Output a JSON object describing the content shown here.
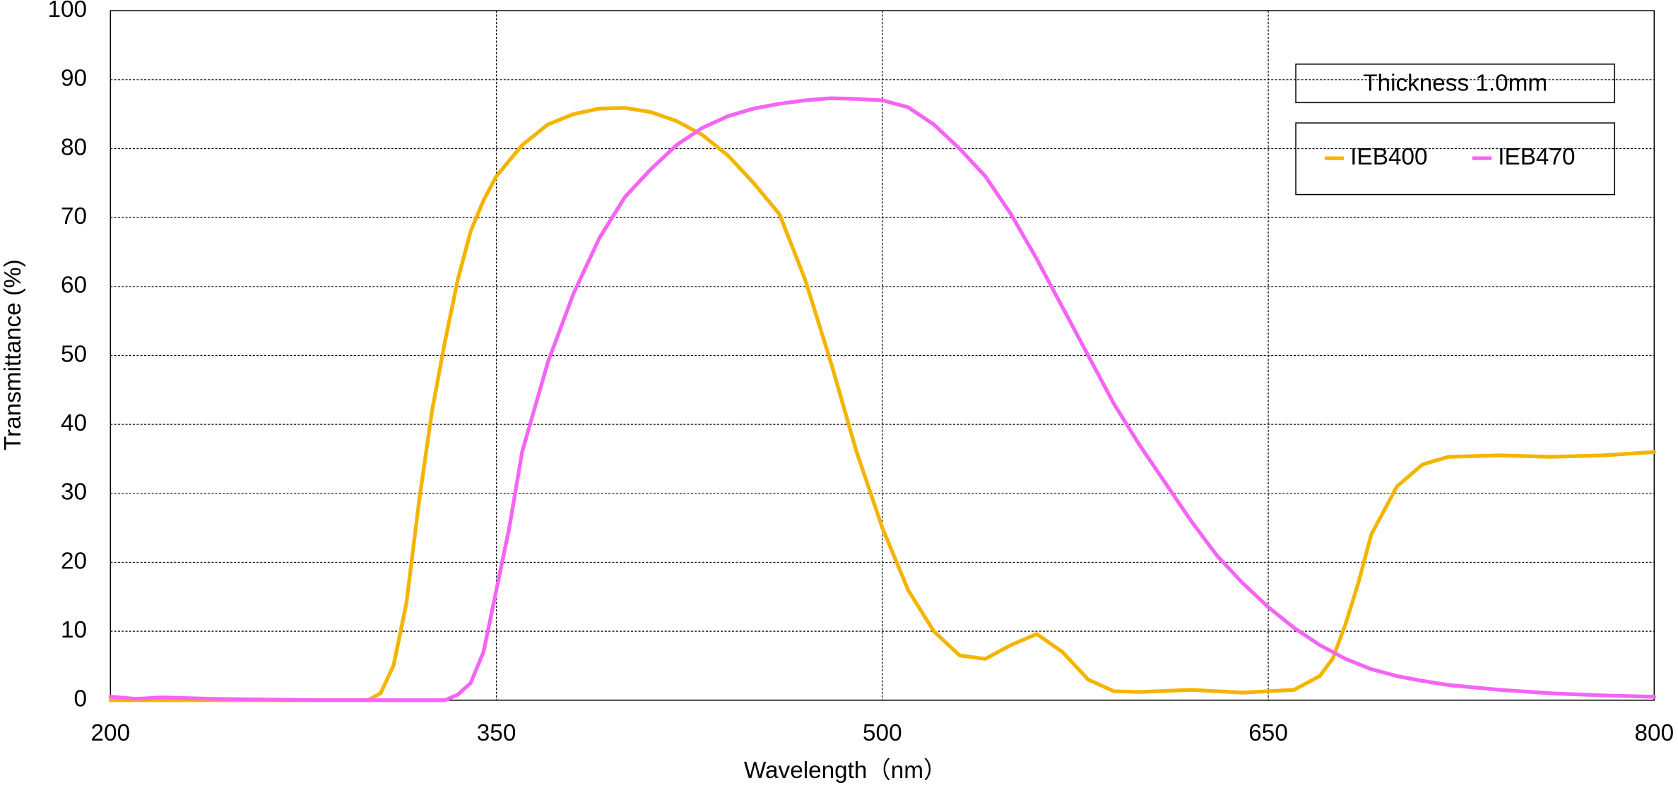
{
  "chart_data": {
    "type": "line",
    "xlabel": "Wavelength（nm）",
    "ylabel": "Transmittance (%)",
    "annotation": "Thickness  1.0mm",
    "xlim": [
      200,
      800
    ],
    "xticks": [
      200,
      350,
      500,
      650,
      800
    ],
    "ylim": [
      0,
      100
    ],
    "yticks": [
      0,
      10,
      20,
      30,
      40,
      50,
      60,
      70,
      80,
      90,
      100
    ],
    "grid": true,
    "legend": "upper right",
    "series": [
      {
        "name": "IEB400",
        "color": "#f5b400",
        "x": [
          200,
          220,
          240,
          260,
          280,
          300,
          305,
          310,
          315,
          320,
          325,
          330,
          335,
          340,
          345,
          350,
          360,
          370,
          380,
          390,
          400,
          410,
          420,
          430,
          440,
          450,
          460,
          470,
          480,
          490,
          500,
          510,
          520,
          530,
          540,
          550,
          560,
          570,
          580,
          590,
          600,
          620,
          640,
          660,
          670,
          675,
          680,
          685,
          690,
          700,
          710,
          720,
          740,
          760,
          780,
          800
        ],
        "values": [
          0,
          0,
          0,
          0,
          0,
          0,
          1,
          5,
          14,
          29,
          42,
          52,
          61,
          68,
          72.5,
          76,
          80.5,
          83.5,
          85,
          85.8,
          85.9,
          85.3,
          84,
          82,
          79,
          75,
          70.5,
          61,
          49,
          36,
          25,
          16,
          10,
          6.5,
          6,
          8,
          9.6,
          7,
          3,
          1.3,
          1.2,
          1.5,
          1.1,
          1.5,
          3.5,
          6,
          11,
          17,
          24,
          31,
          34.2,
          35.3,
          35.5,
          35.3,
          35.5,
          36
        ]
      },
      {
        "name": "IEB470",
        "color": "#f564f5",
        "x": [
          200,
          210,
          220,
          240,
          260,
          280,
          300,
          320,
          330,
          335,
          340,
          345,
          350,
          355,
          360,
          370,
          380,
          390,
          400,
          410,
          420,
          430,
          440,
          450,
          460,
          470,
          480,
          490,
          500,
          510,
          520,
          530,
          540,
          550,
          560,
          570,
          580,
          590,
          600,
          610,
          620,
          630,
          640,
          650,
          660,
          670,
          680,
          690,
          700,
          710,
          720,
          740,
          760,
          780,
          800
        ],
        "values": [
          0.5,
          0.2,
          0.4,
          0.2,
          0.1,
          0,
          0,
          0,
          0,
          0.8,
          2.5,
          7,
          16,
          25,
          36,
          49,
          59,
          67,
          73,
          77,
          80.5,
          83,
          84.7,
          85.8,
          86.5,
          87,
          87.3,
          87.2,
          87,
          86,
          83.5,
          80,
          76,
          70.5,
          64,
          57,
          50,
          43,
          37,
          31.5,
          26,
          21,
          17,
          13.5,
          10.5,
          8,
          6,
          4.5,
          3.5,
          2.8,
          2.2,
          1.5,
          1,
          0.7,
          0.5
        ]
      }
    ]
  }
}
